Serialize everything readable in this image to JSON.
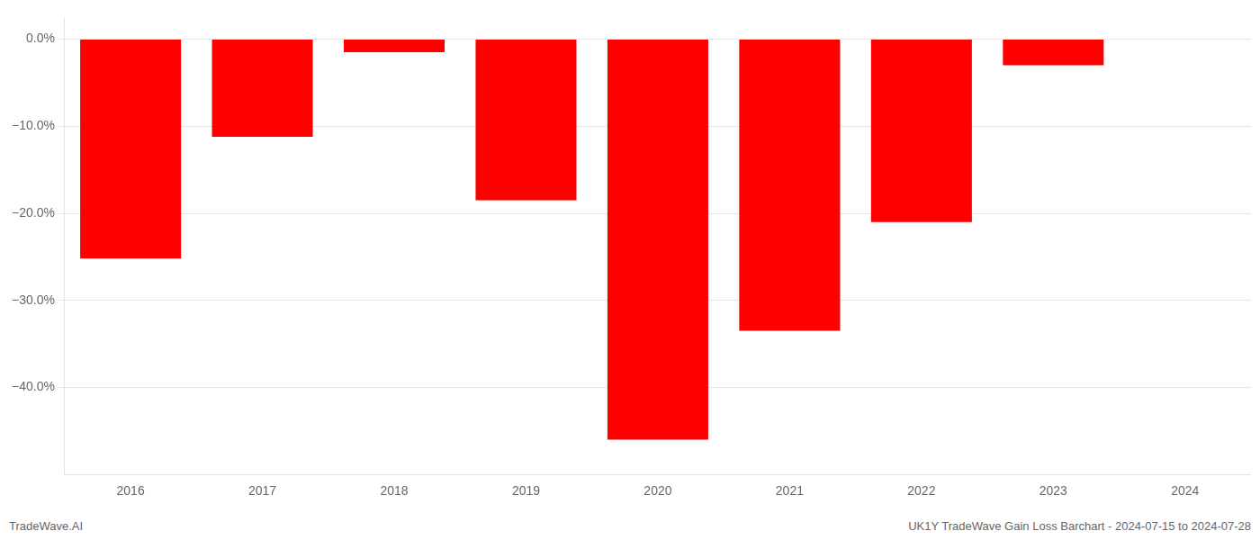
{
  "chart_data": {
    "type": "bar",
    "categories": [
      "2016",
      "2017",
      "2018",
      "2019",
      "2020",
      "2021",
      "2022",
      "2023",
      "2024"
    ],
    "values": [
      -25.2,
      -11.2,
      -1.5,
      -18.5,
      -46.0,
      -33.5,
      -21.0,
      -3.0,
      0.0
    ],
    "color": "#ff0000",
    "ylim": [
      -50,
      2.5
    ],
    "yticks": [
      {
        "value": 0,
        "label": "0.0%"
      },
      {
        "value": -10,
        "label": "−10.0%"
      },
      {
        "value": -20,
        "label": "−20.0%"
      },
      {
        "value": -30,
        "label": "−30.0%"
      },
      {
        "value": -40,
        "label": "−40.0%"
      }
    ],
    "grid": true,
    "annotations": [
      "TradeWave.AI",
      "UK1Y TradeWave Gain Loss Barchart - 2024-07-15 to 2024-07-28"
    ]
  }
}
